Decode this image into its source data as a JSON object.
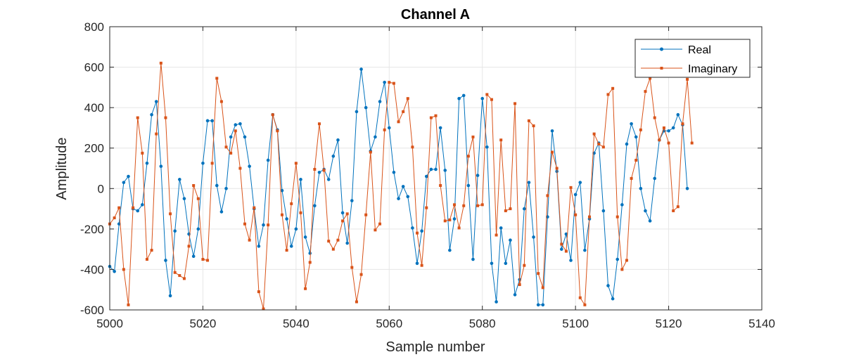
{
  "chart_data": {
    "type": "line",
    "title": "Channel A",
    "xlabel": "Sample number",
    "ylabel": "Amplitude",
    "xlim": [
      5000,
      5140
    ],
    "ylim": [
      -600,
      800
    ],
    "xticks": [
      "5000",
      "5020",
      "5040",
      "5060",
      "5080",
      "5100",
      "5120",
      "5140"
    ],
    "yticks": [
      "-600",
      "-400",
      "-200",
      "0",
      "200",
      "400",
      "600",
      "800"
    ],
    "grid": true,
    "legend": "top-right",
    "x_start": 5000,
    "series": [
      {
        "name": "Real",
        "color": "#0072BD",
        "marker": "circle",
        "values": [
          -385,
          -410,
          -175,
          30,
          60,
          -100,
          -110,
          -80,
          125,
          365,
          430,
          110,
          -355,
          -530,
          -210,
          45,
          -50,
          -225,
          -335,
          -200,
          125,
          335,
          335,
          15,
          -115,
          0,
          255,
          315,
          320,
          255,
          110,
          -100,
          -285,
          -180,
          140,
          365,
          290,
          -10,
          -150,
          -285,
          -200,
          45,
          -240,
          -320,
          -85,
          80,
          95,
          45,
          160,
          240,
          -120,
          -270,
          -60,
          380,
          590,
          400,
          185,
          255,
          430,
          525,
          300,
          80,
          -50,
          10,
          -40,
          -195,
          -370,
          -210,
          60,
          95,
          95,
          300,
          90,
          -305,
          -150,
          445,
          460,
          15,
          -350,
          65,
          445,
          205,
          -370,
          -560,
          -195,
          -370,
          -255,
          -525,
          -450,
          -100,
          30,
          -240,
          -575,
          -575,
          -140,
          285,
          85,
          -300,
          -225,
          -355,
          -30,
          30,
          -305,
          -150,
          175,
          225,
          -110,
          -480,
          -545,
          -350,
          -80,
          220,
          320,
          255,
          0,
          -110,
          -160,
          50,
          240,
          285,
          285,
          300,
          365,
          315,
          0
        ]
      },
      {
        "name": "Imaginary",
        "color": "#D95319",
        "marker": "square",
        "values": [
          -175,
          -145,
          -95,
          -400,
          -575,
          -95,
          350,
          175,
          -350,
          -305,
          270,
          620,
          350,
          -125,
          -415,
          -430,
          -445,
          -285,
          15,
          -50,
          -350,
          -355,
          125,
          545,
          430,
          205,
          175,
          285,
          100,
          -175,
          -255,
          -95,
          -510,
          -595,
          -180,
          365,
          285,
          -130,
          -305,
          -75,
          125,
          -120,
          -495,
          -365,
          95,
          320,
          90,
          -260,
          -300,
          -255,
          -160,
          -125,
          -390,
          -560,
          -425,
          -130,
          180,
          -205,
          -175,
          290,
          525,
          520,
          330,
          380,
          445,
          205,
          -220,
          -380,
          -95,
          350,
          360,
          15,
          -160,
          -155,
          -80,
          -195,
          -85,
          160,
          255,
          -85,
          -80,
          465,
          440,
          -230,
          240,
          -110,
          -100,
          420,
          -475,
          -380,
          335,
          310,
          -420,
          -490,
          -35,
          180,
          100,
          -275,
          -310,
          5,
          -130,
          -540,
          -575,
          -140,
          270,
          220,
          205,
          465,
          495,
          -140,
          -400,
          -355,
          50,
          140,
          290,
          480,
          545,
          350,
          240,
          300,
          225,
          -110,
          -90,
          320,
          540,
          225
        ]
      }
    ]
  }
}
